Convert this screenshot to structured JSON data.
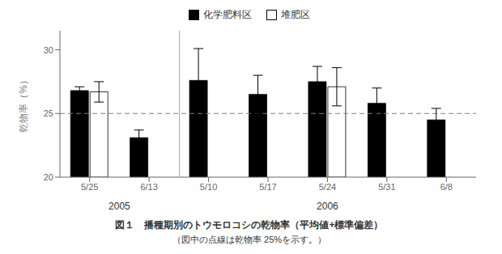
{
  "chart_data": {
    "type": "bar",
    "title": "図１　播種期別のトウモロコシの乾物率（平均値+標準偏差）",
    "subtitle": "（図中の点線は乾物率 25%を示す。）",
    "ylabel": "乾物率（%）",
    "categories": [
      "5/25",
      "6/13",
      "5/10",
      "5/17",
      "5/24",
      "5/31",
      "6/8"
    ],
    "series": [
      {
        "name": "化学肥料区",
        "color": "black",
        "values": [
          26.8,
          23.1,
          27.6,
          26.5,
          27.5,
          25.8,
          24.5
        ],
        "errors": [
          0.3,
          0.6,
          2.5,
          1.5,
          1.2,
          1.2,
          0.9
        ]
      },
      {
        "name": "堆肥区",
        "color": "white",
        "values": [
          26.7,
          null,
          null,
          null,
          27.1,
          null,
          null
        ],
        "errors": [
          0.8,
          null,
          null,
          null,
          1.5,
          null,
          null
        ]
      }
    ],
    "ylim": [
      20,
      31.5
    ],
    "yticks": [
      20,
      25,
      30
    ],
    "grid": false,
    "legend": "top",
    "annotations": [
      {
        "text": "2005",
        "categories": [
          "5/25",
          "6/13"
        ]
      },
      {
        "text": "2006",
        "categories": [
          "5/10",
          "6/8"
        ]
      }
    ],
    "reference_lines": [
      {
        "y": 25,
        "line_style": "dashed"
      }
    ]
  }
}
